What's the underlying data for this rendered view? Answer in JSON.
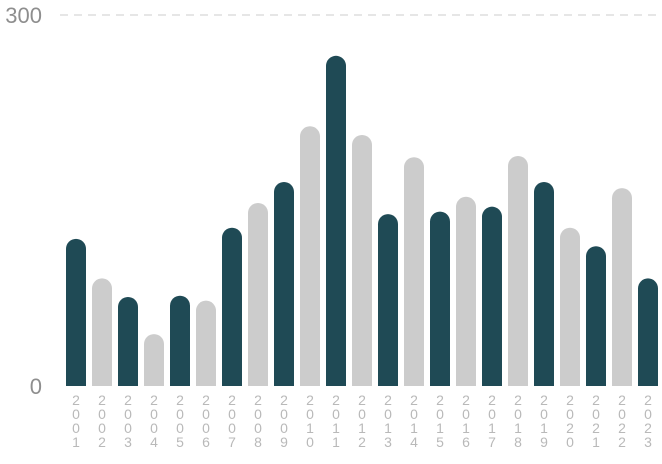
{
  "chart_data": {
    "type": "bar",
    "title": "",
    "xlabel": "",
    "ylabel": "",
    "ylim": [
      0,
      300
    ],
    "yticks": [
      0,
      300
    ],
    "categories": [
      "2001",
      "2002",
      "2003",
      "2004",
      "2005",
      "2006",
      "2007",
      "2008",
      "2009",
      "2010",
      "2011",
      "2012",
      "2013",
      "2014",
      "2015",
      "2016",
      "2017",
      "2018",
      "2019",
      "2020",
      "2021",
      "2022",
      "2023"
    ],
    "values": [
      119,
      87,
      72,
      42,
      73,
      69,
      128,
      148,
      165,
      210,
      267,
      203,
      139,
      185,
      141,
      153,
      145,
      186,
      165,
      128,
      113,
      160,
      87
    ],
    "colors": [
      "#1f4a55",
      "#cccccc"
    ],
    "grid": true
  }
}
